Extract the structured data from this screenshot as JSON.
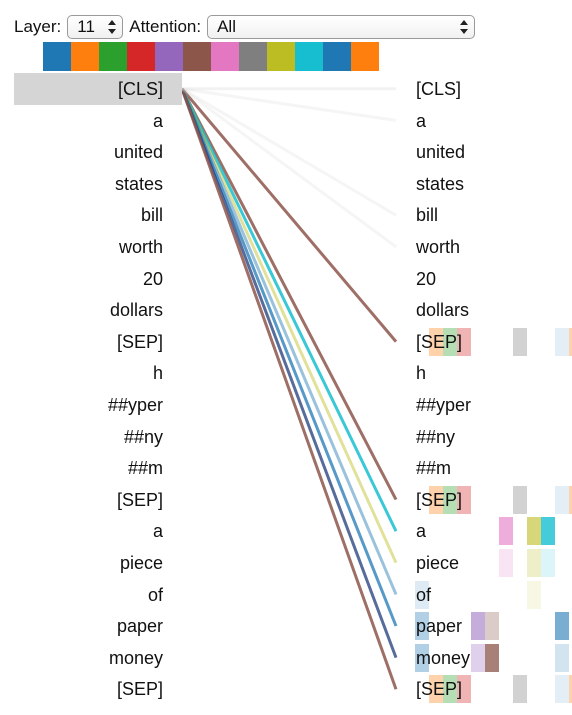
{
  "controls": {
    "layer_label": "Layer:",
    "layer_value": "11",
    "attention_label": "Attention:",
    "attention_value": "All"
  },
  "head_colors": [
    "#1f77b4",
    "#ff7f0e",
    "#2ca02c",
    "#d62728",
    "#9467bd",
    "#8c564b",
    "#e377c2",
    "#7f7f7f",
    "#bcbd22",
    "#17becf",
    "#1f77b4",
    "#ff7f0e"
  ],
  "left_tokens": [
    "[CLS]",
    "a",
    "united",
    "states",
    "bill",
    "worth",
    "20",
    "dollars",
    "[SEP]",
    "h",
    "##yper",
    "##ny",
    "##m",
    "[SEP]",
    "a",
    "piece",
    "of",
    "paper",
    "money",
    "[SEP]"
  ],
  "right_tokens": [
    "[CLS]",
    "a",
    "united",
    "states",
    "bill",
    "worth",
    "20",
    "dollars",
    "[SEP]",
    "h",
    "##yper",
    "##ny",
    "##m",
    "[SEP]",
    "a",
    "piece",
    "of",
    "paper",
    "money",
    "[SEP]"
  ],
  "selected_left_index": 0,
  "attention_lines": [
    {
      "to": 8,
      "color": "#8c564b",
      "opacity": 0.85
    },
    {
      "to": 13,
      "color": "#8c564b",
      "opacity": 0.85
    },
    {
      "to": 14,
      "color": "#17becf",
      "opacity": 0.85
    },
    {
      "to": 15,
      "color": "#bcbd22",
      "opacity": 0.45
    },
    {
      "to": 16,
      "color": "#1f77b4",
      "opacity": 0.45
    },
    {
      "to": 17,
      "color": "#1f77b4",
      "opacity": 0.75
    },
    {
      "to": 18,
      "color": "#1f3b7a",
      "opacity": 0.75
    },
    {
      "to": 19,
      "color": "#8c564b",
      "opacity": 0.85
    },
    {
      "to": 0,
      "color": "#cccccc",
      "opacity": 0.25
    },
    {
      "to": 1,
      "color": "#cccccc",
      "opacity": 0.2
    },
    {
      "to": 4,
      "color": "#cccccc",
      "opacity": 0.2
    },
    {
      "to": 5,
      "color": "#cccccc",
      "opacity": 0.2
    }
  ],
  "attention_cells": [
    {
      "row": 8,
      "head": 1,
      "opacity": 0.35
    },
    {
      "row": 8,
      "head": 2,
      "opacity": 0.35
    },
    {
      "row": 8,
      "head": 3,
      "opacity": 0.35
    },
    {
      "row": 8,
      "head": 7,
      "opacity": 0.35
    },
    {
      "row": 8,
      "head": 10,
      "opacity": 0.12
    },
    {
      "row": 8,
      "head": 11,
      "opacity": 0.35
    },
    {
      "row": 13,
      "head": 1,
      "opacity": 0.35
    },
    {
      "row": 13,
      "head": 2,
      "opacity": 0.35
    },
    {
      "row": 13,
      "head": 3,
      "opacity": 0.35
    },
    {
      "row": 13,
      "head": 7,
      "opacity": 0.35
    },
    {
      "row": 13,
      "head": 10,
      "opacity": 0.12
    },
    {
      "row": 13,
      "head": 11,
      "opacity": 0.35
    },
    {
      "row": 14,
      "head": 6,
      "opacity": 0.6
    },
    {
      "row": 14,
      "head": 8,
      "opacity": 0.6
    },
    {
      "row": 14,
      "head": 9,
      "opacity": 0.8
    },
    {
      "row": 15,
      "head": 6,
      "opacity": 0.2
    },
    {
      "row": 15,
      "head": 8,
      "opacity": 0.25
    },
    {
      "row": 15,
      "head": 9,
      "opacity": 0.15
    },
    {
      "row": 16,
      "head": 0,
      "opacity": 0.15
    },
    {
      "row": 16,
      "head": 8,
      "opacity": 0.12
    },
    {
      "row": 17,
      "head": 0,
      "opacity": 0.35
    },
    {
      "row": 17,
      "head": 4,
      "opacity": 0.55
    },
    {
      "row": 17,
      "head": 5,
      "opacity": 0.3
    },
    {
      "row": 17,
      "head": 10,
      "opacity": 0.6
    },
    {
      "row": 18,
      "head": 0,
      "opacity": 0.35
    },
    {
      "row": 18,
      "head": 4,
      "opacity": 0.3
    },
    {
      "row": 18,
      "head": 5,
      "opacity": 0.75
    },
    {
      "row": 18,
      "head": 10,
      "opacity": 0.2
    },
    {
      "row": 19,
      "head": 1,
      "opacity": 0.35
    },
    {
      "row": 19,
      "head": 2,
      "opacity": 0.35
    },
    {
      "row": 19,
      "head": 3,
      "opacity": 0.35
    },
    {
      "row": 19,
      "head": 7,
      "opacity": 0.35
    },
    {
      "row": 19,
      "head": 10,
      "opacity": 0.12
    },
    {
      "row": 19,
      "head": 11,
      "opacity": 0.35
    }
  ]
}
